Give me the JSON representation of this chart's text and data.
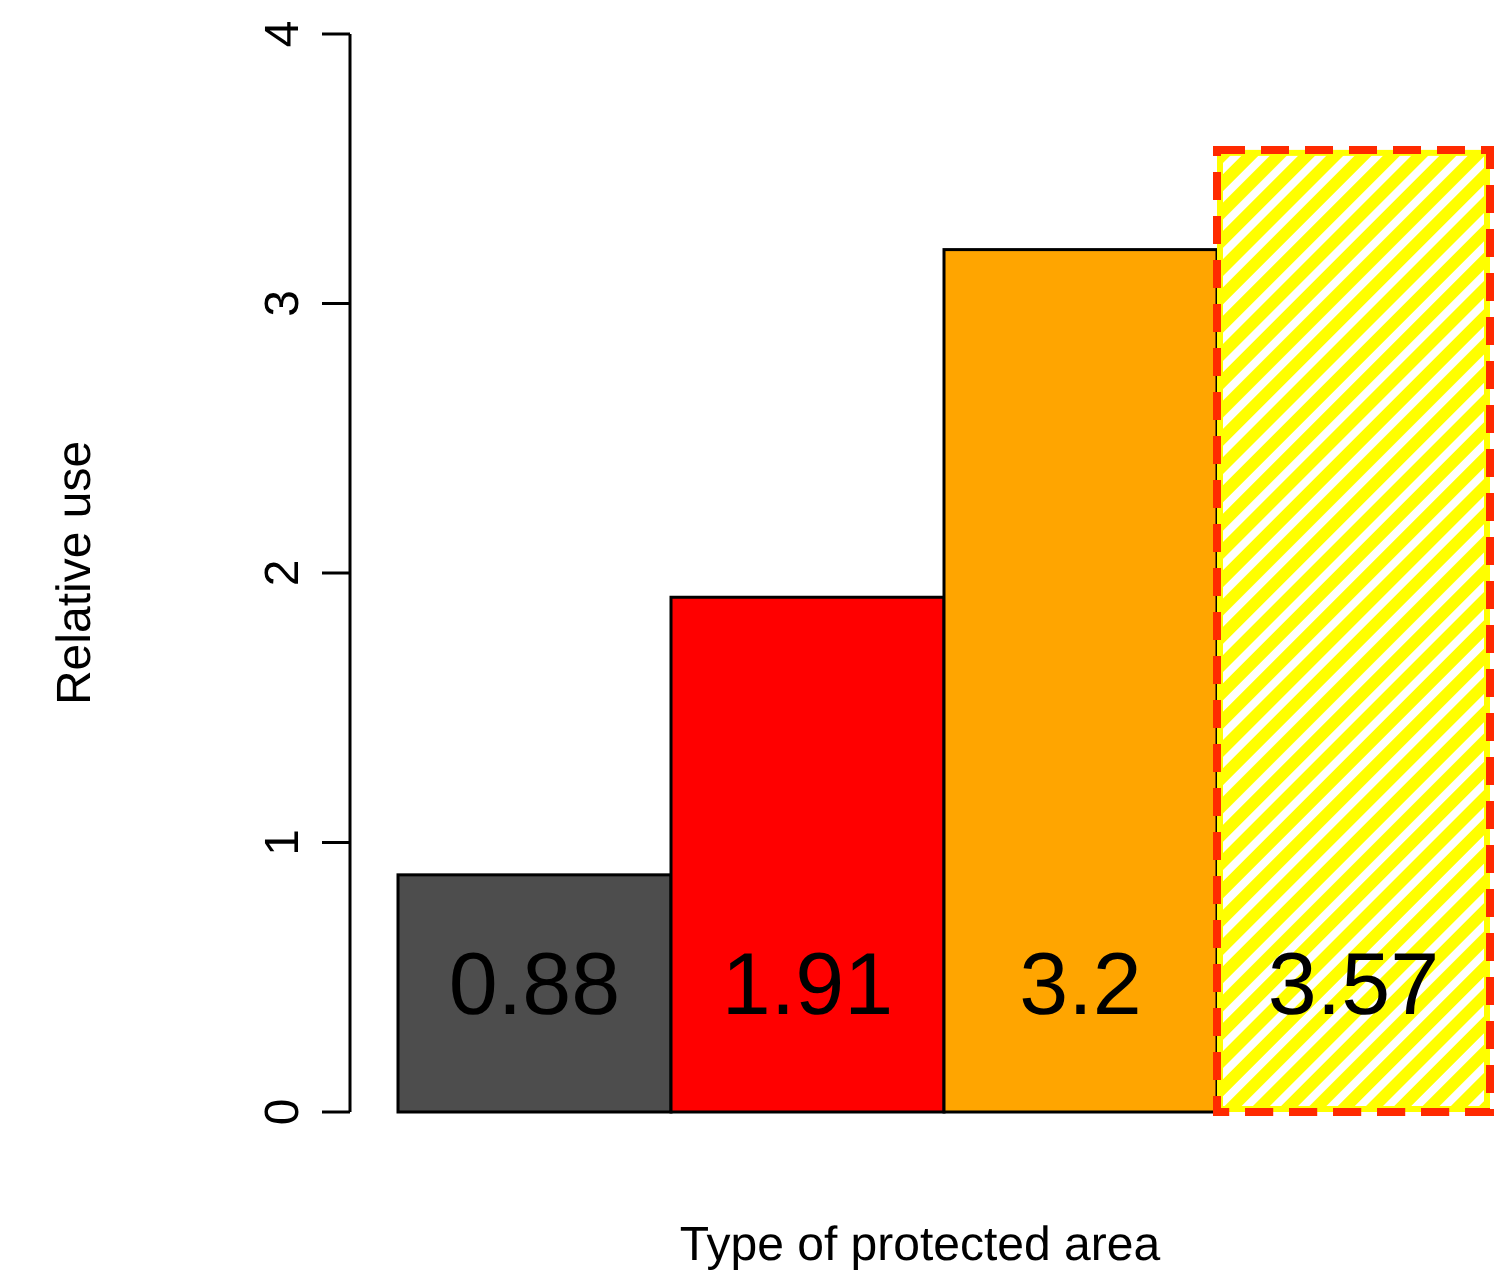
{
  "chart_data": {
    "type": "bar",
    "xlabel": "Type of protected area",
    "ylabel": "Relative use",
    "categories": [
      null,
      null,
      null,
      null
    ],
    "series": [
      {
        "colors": [
          "#4d4d4d",
          "#ff0000",
          "#ffa500",
          "#ffff00"
        ],
        "line_style": [
          "solid",
          "solid",
          "solid",
          "dashed"
        ],
        "values": [
          0.88,
          1.91,
          3.2,
          3.57
        ]
      }
    ],
    "ylim": [
      0,
      4
    ],
    "yticks": [
      0,
      1,
      2,
      3,
      4
    ],
    "data_labels": true
  }
}
